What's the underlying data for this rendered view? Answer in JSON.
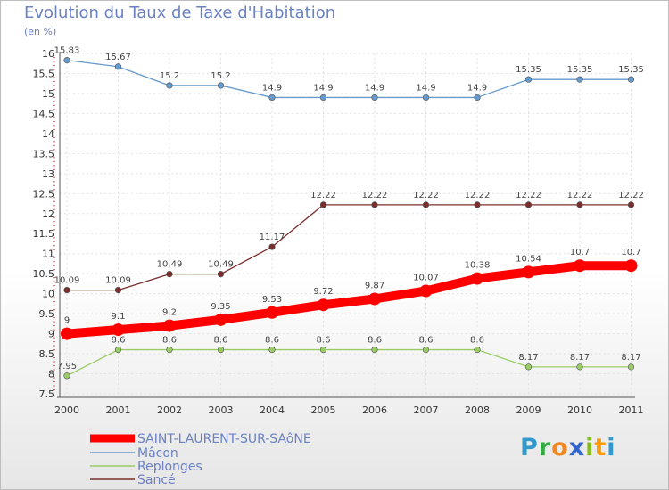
{
  "chart_data": {
    "type": "line",
    "title": "Evolution du Taux de Taxe d'Habitation",
    "ylabel": "(en %)",
    "xlabel": "",
    "x": [
      "2000",
      "2001",
      "2002",
      "2003",
      "2004",
      "2005",
      "2006",
      "2007",
      "2008",
      "2009",
      "2010",
      "2011"
    ],
    "ylim": [
      7.5,
      16
    ],
    "yticks": [
      "7.5",
      "8",
      "8.5",
      "9",
      "9.5",
      "10",
      "10.5",
      "11",
      "11.5",
      "12",
      "12.5",
      "13",
      "13.5",
      "14",
      "14.5",
      "15",
      "15.5",
      "16"
    ],
    "series": [
      {
        "name": "SAINT-LAURENT-SUR-SAôNE",
        "color": "#ff0000",
        "values": [
          9,
          9.1,
          9.2,
          9.35,
          9.53,
          9.72,
          9.87,
          10.07,
          10.38,
          10.54,
          10.7,
          10.7
        ],
        "labels": [
          "9",
          "9.1",
          "9.2",
          "9.35",
          "9.53",
          "9.72",
          "9.87",
          "10.07",
          "10.38",
          "10.54",
          "10.7",
          "10.7"
        ]
      },
      {
        "name": "Mâcon",
        "color": "#6699cc",
        "values": [
          15.83,
          15.67,
          15.2,
          15.2,
          14.9,
          14.9,
          14.9,
          14.9,
          14.9,
          15.35,
          15.35,
          15.35
        ],
        "labels": [
          "15.83",
          "15.67",
          "15.2",
          "15.2",
          "14.9",
          "14.9",
          "14.9",
          "14.9",
          "14.9",
          "15.35",
          "15.35",
          "15.35"
        ]
      },
      {
        "name": "Replonges",
        "color": "#99cc66",
        "values": [
          7.95,
          8.6,
          8.6,
          8.6,
          8.6,
          8.6,
          8.6,
          8.6,
          8.6,
          8.17,
          8.17,
          8.17
        ],
        "labels": [
          "7.95",
          "8.6",
          "8.6",
          "8.6",
          "8.6",
          "8.6",
          "8.6",
          "8.6",
          "8.6",
          "8.17",
          "8.17",
          "8.17"
        ]
      },
      {
        "name": "Sancé",
        "color": "#7a2e2e",
        "values": [
          10.09,
          10.09,
          10.49,
          10.49,
          11.17,
          12.22,
          12.22,
          12.22,
          12.22,
          12.22,
          12.22,
          12.22
        ],
        "labels": [
          "10.09",
          "10.09",
          "10.49",
          "10.49",
          "11.17",
          "12.22",
          "12.22",
          "12.22",
          "12.22",
          "12.22",
          "12.22",
          "12.22"
        ]
      }
    ],
    "legend": [
      "SAINT-LAURENT-SUR-SAôNE",
      "Mâcon",
      "Replonges",
      "Sancé"
    ]
  },
  "logo": {
    "letters": [
      "P",
      "r",
      "o",
      "x",
      "i",
      "t",
      "i"
    ],
    "colors": [
      "#3399cc",
      "#33aa44",
      "#ee8822",
      "#3366cc",
      "#88bb22",
      "#ff9900",
      "#3399cc"
    ]
  }
}
